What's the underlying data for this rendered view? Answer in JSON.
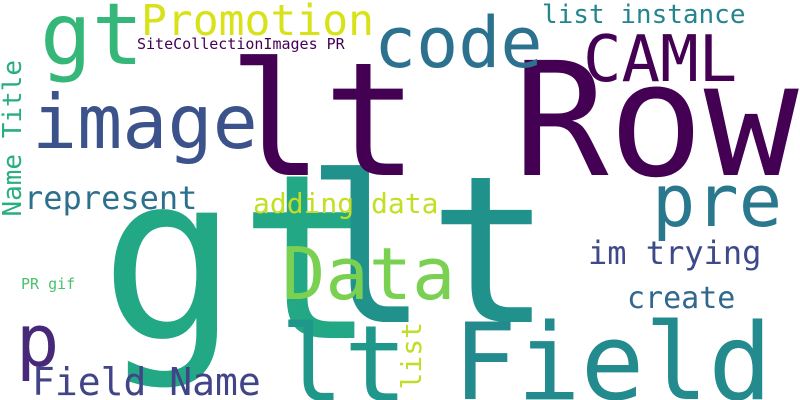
{
  "words": [
    {
      "text": "gt",
      "color": "#22a884"
    },
    {
      "text": "lt",
      "color": "#21918c"
    },
    {
      "text": "lt Row",
      "color": "#440154"
    },
    {
      "text": "Field",
      "color": "#238a8d"
    },
    {
      "text": "lt",
      "color": "#1f988b"
    },
    {
      "text": "gt",
      "color": "#35b779"
    },
    {
      "text": "Data",
      "color": "#7ad151"
    },
    {
      "text": "image",
      "color": "#3b528b"
    },
    {
      "text": "code",
      "color": "#2c728e"
    },
    {
      "text": "CAML",
      "color": "#440154"
    },
    {
      "text": "pre",
      "color": "#2a788e"
    },
    {
      "text": "p",
      "color": "#482878"
    },
    {
      "text": "Promotion",
      "color": "#d8e219"
    },
    {
      "text": "Field Name",
      "color": "#414487"
    },
    {
      "text": "list instance",
      "color": "#25858e"
    },
    {
      "text": "represent",
      "color": "#2d708e"
    },
    {
      "text": "adding data",
      "color": "#c2df23"
    },
    {
      "text": "im trying",
      "color": "#3e4989"
    },
    {
      "text": "create",
      "color": "#31688e"
    },
    {
      "text": "Name Title",
      "color": "#29af7f"
    },
    {
      "text": "list",
      "color": "#bddf26"
    },
    {
      "text": "SiteCollectionImages PR",
      "color": "#440154"
    },
    {
      "text": "PR gif",
      "color": "#4ac16d"
    }
  ]
}
